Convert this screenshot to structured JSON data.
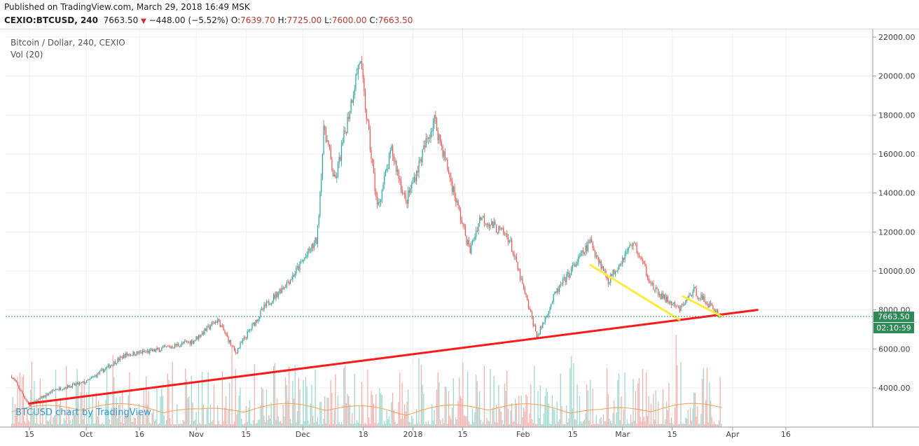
{
  "header": {
    "published": "Published on TradingView.com, March 29, 2018 16:49 MSK",
    "symbol": "CEXIO:BTCUSD, 240",
    "last": "7663.50",
    "change": "−448.00 (−5.52%)",
    "o_label": "O:",
    "o_value": "7639.70",
    "h_label": "H:",
    "h_value": "7725.00",
    "l_label": "L:",
    "l_value": "7600.00",
    "c_label": "C:",
    "c_value": "7663.50"
  },
  "legend": {
    "title": "Bitcoin / Dollar, 240, CEXIO",
    "volume": "Vol (20)"
  },
  "watermark": "BTCUSD chart by TradingView",
  "price_badge": "7663.50",
  "timer_badge": "02:10:59",
  "colors": {
    "up": "#26a69a",
    "down": "#ef5350",
    "support": "#ff1a1a",
    "channel": "#ffeb3b",
    "badge": "#2e8b57"
  },
  "chart_data": {
    "type": "candlestick",
    "y_ticks": [
      "22000.00",
      "20000.00",
      "18000.00",
      "16000.00",
      "14000.00",
      "12000.00",
      "10000.00",
      "8000.00",
      "6000.00",
      "4000.00"
    ],
    "x_ticks": [
      "15",
      "Oct",
      "16",
      "Nov",
      "15",
      "Dec",
      "18",
      "2018",
      "15",
      "Feb",
      "15",
      "Mar",
      "15",
      "Apr",
      "16"
    ],
    "ylim": [
      2200,
      22600
    ],
    "price_path": [
      {
        "t": "2017-09-10",
        "p": 4600
      },
      {
        "t": "2017-09-15",
        "p": 3100
      },
      {
        "t": "2017-09-22",
        "p": 3900
      },
      {
        "t": "2017-10-01",
        "p": 4300
      },
      {
        "t": "2017-10-12",
        "p": 5700
      },
      {
        "t": "2017-10-20",
        "p": 5900
      },
      {
        "t": "2017-10-31",
        "p": 6400
      },
      {
        "t": "2017-11-07",
        "p": 7500
      },
      {
        "t": "2017-11-12",
        "p": 5800
      },
      {
        "t": "2017-11-20",
        "p": 8100
      },
      {
        "t": "2017-11-28",
        "p": 9700
      },
      {
        "t": "2017-12-05",
        "p": 11600
      },
      {
        "t": "2017-12-07",
        "p": 17500
      },
      {
        "t": "2017-12-10",
        "p": 14500
      },
      {
        "t": "2017-12-17",
        "p": 20900
      },
      {
        "t": "2017-12-22",
        "p": 13200
      },
      {
        "t": "2017-12-26",
        "p": 16200
      },
      {
        "t": "2017-12-30",
        "p": 13500
      },
      {
        "t": "2018-01-07",
        "p": 17800
      },
      {
        "t": "2018-01-17",
        "p": 11000
      },
      {
        "t": "2018-01-20",
        "p": 12800
      },
      {
        "t": "2018-01-28",
        "p": 11700
      },
      {
        "t": "2018-02-05",
        "p": 6600
      },
      {
        "t": "2018-02-10",
        "p": 8800
      },
      {
        "t": "2018-02-20",
        "p": 11500
      },
      {
        "t": "2018-02-25",
        "p": 9500
      },
      {
        "t": "2018-03-04",
        "p": 11500
      },
      {
        "t": "2018-03-10",
        "p": 9000
      },
      {
        "t": "2018-03-17",
        "p": 8000
      },
      {
        "t": "2018-03-21",
        "p": 9000
      },
      {
        "t": "2018-03-29",
        "p": 7663.5
      }
    ],
    "trendlines": [
      {
        "name": "support",
        "from": {
          "t": "2017-09-15",
          "p": 3200
        },
        "to": {
          "t": "2018-04-08",
          "p": 8000
        }
      },
      {
        "name": "channel-1",
        "from": {
          "t": "2018-02-20",
          "p": 10300
        },
        "to": {
          "t": "2018-03-17",
          "p": 7500
        }
      },
      {
        "name": "channel-2",
        "from": {
          "t": "2018-03-18",
          "p": 8700
        },
        "to": {
          "t": "2018-03-29",
          "p": 7663.5
        }
      }
    ],
    "last_price": 7663.5
  }
}
